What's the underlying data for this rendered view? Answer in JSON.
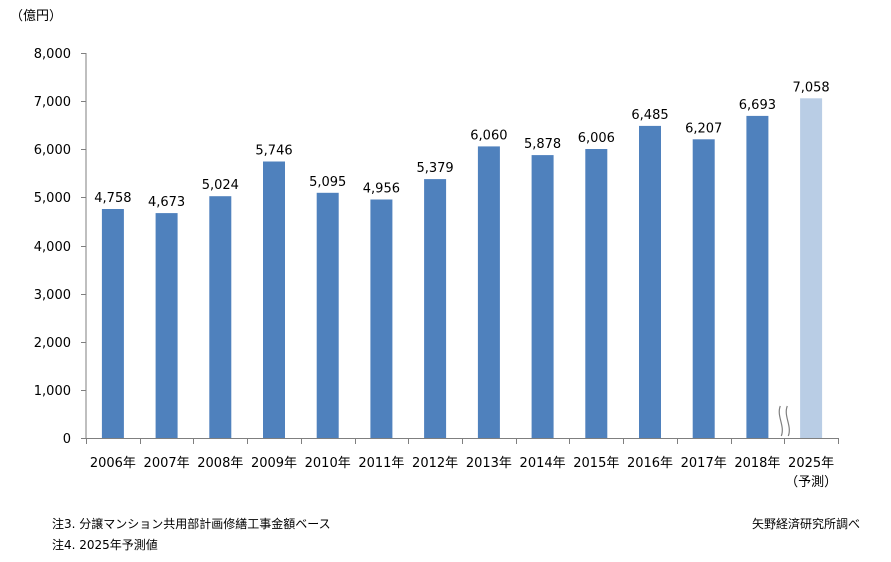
{
  "chart_data": {
    "type": "bar",
    "unit_label": "（億円）",
    "categories": [
      "2006年",
      "2007年",
      "2008年",
      "2009年",
      "2010年",
      "2011年",
      "2012年",
      "2013年",
      "2014年",
      "2015年",
      "2016年",
      "2017年",
      "2018年",
      "2025年"
    ],
    "forecast_sub_label": "（予測）",
    "values": [
      4758,
      4673,
      5024,
      5746,
      5095,
      4956,
      5379,
      6060,
      5878,
      6006,
      6485,
      6207,
      6693,
      7058
    ],
    "value_labels": [
      "4,758",
      "4,673",
      "5,024",
      "5,746",
      "5,095",
      "4,956",
      "5,379",
      "6,060",
      "5,878",
      "6,006",
      "6,485",
      "6,207",
      "6,693",
      "7,058"
    ],
    "forecast_index": 13,
    "ylim": [
      0,
      8000
    ],
    "yticks": [
      0,
      1000,
      2000,
      3000,
      4000,
      5000,
      6000,
      7000,
      8000
    ],
    "ytick_labels": [
      "0",
      "1,000",
      "2,000",
      "3,000",
      "4,000",
      "5,000",
      "6,000",
      "7,000",
      "8,000"
    ],
    "axis_break_before_forecast": true,
    "colors": {
      "actual": "#4f81bd",
      "forecast": "#b9cde5"
    }
  },
  "notes": {
    "note3": "注3. 分譲マンション共用部計画修繕工事金額ベース",
    "note4": "注4. 2025年予測値",
    "source": "矢野経済研究所調べ"
  }
}
